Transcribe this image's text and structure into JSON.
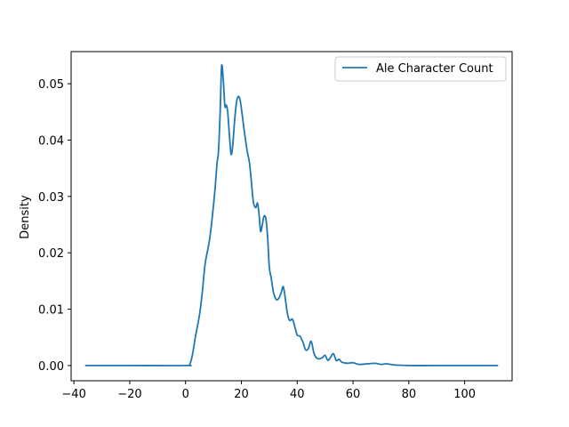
{
  "chart_data": {
    "type": "line",
    "title": "",
    "xlabel": "",
    "ylabel": "Density",
    "xlim": [
      -41,
      117
    ],
    "ylim": [
      -0.0027,
      0.0557
    ],
    "grid": false,
    "legend_position": "top-right",
    "x_ticks": [
      -40,
      -20,
      0,
      20,
      40,
      60,
      80,
      100
    ],
    "y_ticks": [
      0.0,
      0.01,
      0.02,
      0.03,
      0.04,
      0.05
    ],
    "x_tick_labels": [
      "−40",
      "−20",
      "0",
      "20",
      "40",
      "60",
      "80",
      "100"
    ],
    "y_tick_labels": [
      "0.00",
      "0.01",
      "0.02",
      "0.03",
      "0.04",
      "0.05"
    ],
    "series": [
      {
        "name": "Ale Character Count",
        "color": "#1f77b4",
        "points": [
          [
            -36,
            0.0
          ],
          [
            -20,
            0.0
          ],
          [
            0,
            0.0
          ],
          [
            1.5,
            0.0002
          ],
          [
            2.5,
            0.002
          ],
          [
            3.5,
            0.005
          ],
          [
            5,
            0.009
          ],
          [
            6,
            0.013
          ],
          [
            7,
            0.018
          ],
          [
            8.5,
            0.022
          ],
          [
            9.5,
            0.026
          ],
          [
            10.5,
            0.031
          ],
          [
            11.3,
            0.036
          ],
          [
            11.8,
            0.038
          ],
          [
            12.4,
            0.045
          ],
          [
            12.8,
            0.052
          ],
          [
            13.1,
            0.0532
          ],
          [
            13.6,
            0.05
          ],
          [
            14.1,
            0.046
          ],
          [
            14.6,
            0.0462
          ],
          [
            15.1,
            0.045
          ],
          [
            15.7,
            0.041
          ],
          [
            16.3,
            0.0375
          ],
          [
            16.9,
            0.039
          ],
          [
            17.5,
            0.043
          ],
          [
            18.2,
            0.0465
          ],
          [
            18.8,
            0.0477
          ],
          [
            19.5,
            0.0472
          ],
          [
            20.3,
            0.0445
          ],
          [
            21.2,
            0.041
          ],
          [
            22.1,
            0.038
          ],
          [
            22.9,
            0.036
          ],
          [
            23.6,
            0.0325
          ],
          [
            24.3,
            0.029
          ],
          [
            25.1,
            0.028
          ],
          [
            25.8,
            0.0288
          ],
          [
            26.4,
            0.0265
          ],
          [
            26.9,
            0.0238
          ],
          [
            27.5,
            0.025
          ],
          [
            28.1,
            0.0265
          ],
          [
            28.8,
            0.026
          ],
          [
            29.4,
            0.0228
          ],
          [
            30.0,
            0.0175
          ],
          [
            30.7,
            0.0155
          ],
          [
            31.5,
            0.013
          ],
          [
            32.5,
            0.0117
          ],
          [
            33.5,
            0.012
          ],
          [
            34.3,
            0.013
          ],
          [
            35.0,
            0.014
          ],
          [
            35.7,
            0.012
          ],
          [
            36.5,
            0.0092
          ],
          [
            37.3,
            0.008
          ],
          [
            38.3,
            0.0082
          ],
          [
            39.3,
            0.0066
          ],
          [
            40.0,
            0.0054
          ],
          [
            41.0,
            0.0052
          ],
          [
            42.0,
            0.0042
          ],
          [
            43.0,
            0.0028
          ],
          [
            44.0,
            0.003
          ],
          [
            45.0,
            0.0043
          ],
          [
            46.0,
            0.0022
          ],
          [
            47.0,
            0.0013
          ],
          [
            48.0,
            0.0012
          ],
          [
            49.0,
            0.0014
          ],
          [
            50.0,
            0.0018
          ],
          [
            51.0,
            0.0009
          ],
          [
            52.0,
            0.0015
          ],
          [
            53.0,
            0.0021
          ],
          [
            54.0,
            0.0009
          ],
          [
            55.0,
            0.0011
          ],
          [
            56.0,
            0.0006
          ],
          [
            58.0,
            0.0004
          ],
          [
            60.0,
            0.0005
          ],
          [
            62.0,
            0.0002
          ],
          [
            65.0,
            0.0003
          ],
          [
            68.0,
            0.0004
          ],
          [
            70.0,
            0.0002
          ],
          [
            72.0,
            0.0003
          ],
          [
            75.0,
            0.0001
          ],
          [
            80.0,
            0.0
          ],
          [
            90.0,
            0.0
          ],
          [
            100.0,
            0.0
          ],
          [
            112.0,
            0.0
          ]
        ]
      }
    ]
  }
}
